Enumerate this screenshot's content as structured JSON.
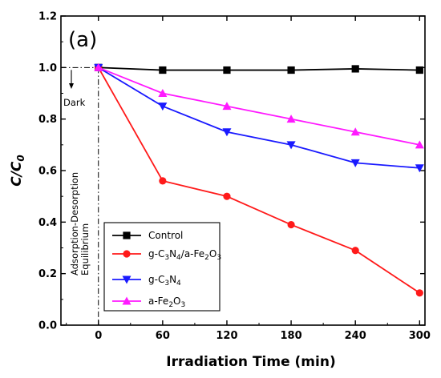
{
  "chart_data": {
    "type": "line",
    "panel_label": "(a)",
    "xlabel": "Irradiation Time (min)",
    "ylabel": "C/C",
    "ylabel_sub": "0",
    "x": [
      0,
      60,
      120,
      180,
      240,
      300
    ],
    "xlim": [
      -35,
      305
    ],
    "ylim": [
      0.0,
      1.2
    ],
    "xticks": [
      "0",
      "60",
      "120",
      "180",
      "240",
      "300"
    ],
    "yticks": [
      "0.0",
      "0.2",
      "0.4",
      "0.6",
      "0.8",
      "1.0",
      "1.2"
    ],
    "grid": false,
    "legend_position": "bottom-left",
    "series": [
      {
        "name": "Control",
        "color": "#000000",
        "marker": "square",
        "values": [
          1.0,
          0.99,
          0.99,
          0.99,
          0.995,
          0.99
        ]
      },
      {
        "name": "g-C3N4/a-Fe2O3",
        "color": "#ff1a1a",
        "marker": "circle",
        "values": [
          1.0,
          0.56,
          0.5,
          0.39,
          0.29,
          0.125
        ]
      },
      {
        "name": "g-C3N4",
        "color": "#1a1aff",
        "marker": "triangle-down",
        "values": [
          1.0,
          0.85,
          0.75,
          0.7,
          0.63,
          0.61
        ]
      },
      {
        "name": "a-Fe2O3",
        "color": "#ff1aff",
        "marker": "triangle-up",
        "values": [
          1.0,
          0.9,
          0.85,
          0.8,
          0.75,
          0.7
        ]
      }
    ],
    "legend_labels": [
      {
        "parts": [
          {
            "t": "Control"
          }
        ]
      },
      {
        "parts": [
          {
            "t": "g-C"
          },
          {
            "t": "3",
            "sub": true
          },
          {
            "t": "N"
          },
          {
            "t": "4",
            "sub": true
          },
          {
            "t": "/a-Fe"
          },
          {
            "t": "2",
            "sub": true
          },
          {
            "t": "O"
          },
          {
            "t": "3",
            "sub": true
          }
        ]
      },
      {
        "parts": [
          {
            "t": "g-C"
          },
          {
            "t": "3",
            "sub": true
          },
          {
            "t": "N"
          },
          {
            "t": "4",
            "sub": true
          }
        ]
      },
      {
        "parts": [
          {
            "t": "a-Fe"
          },
          {
            "t": "2",
            "sub": true
          },
          {
            "t": "O"
          },
          {
            "t": "3",
            "sub": true
          }
        ]
      }
    ],
    "annotations": {
      "dark": "Dark",
      "adsorption": "Adsorption-Desorption",
      "equilibrium": "Equilibrium"
    }
  }
}
